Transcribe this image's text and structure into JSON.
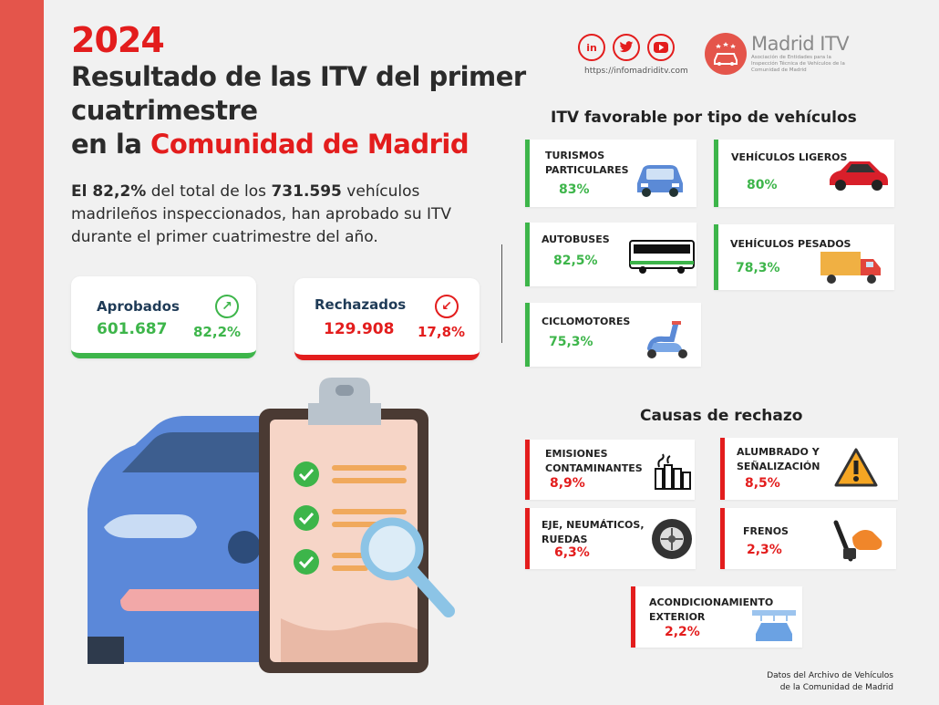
{
  "header": {
    "year": "2024",
    "title_line1": "Resultado de las ITV del primer",
    "title_line2": "cuatrimestre",
    "title_line3_prefix": "en la ",
    "title_line3_highlight": "Comunidad de Madrid"
  },
  "lead": {
    "pct": "El 82,2%",
    "part1": " del total de los ",
    "total": "731.595",
    "part2": "  vehículos madrileños inspeccionados, han aprobado su ITV durante el primer cuatrimestre del año."
  },
  "stats": {
    "approved": {
      "label": "Aprobados",
      "value": "601.687",
      "pct": "82,2%",
      "icon": "arrow-up-right-icon"
    },
    "rejected": {
      "label": "Rechazados",
      "value": "129.908",
      "pct": "17,8%",
      "icon": "arrow-down-left-icon"
    }
  },
  "social": {
    "linkedin": "in",
    "url": "https://infomadriditv.com"
  },
  "brand": {
    "name": "Madrid ITV",
    "subtitle": "Asociación de Entidades para la Inspección Técnica de Vehículos de la Comunidad de Madrid"
  },
  "favorable": {
    "title": "ITV favorable por tipo de vehículos",
    "items": [
      {
        "label_1": "TURISMOS",
        "label_2": "PARTICULARES",
        "pct": "83%",
        "icon": "car-icon"
      },
      {
        "label_1": "VEHÍCULOS LIGEROS",
        "label_2": "",
        "pct": "80%",
        "icon": "red-car-icon"
      },
      {
        "label_1": "AUTOBUSES",
        "label_2": "",
        "pct": "82,5%",
        "icon": "bus-icon"
      },
      {
        "label_1": "VEHÍCULOS PESADOS",
        "label_2": "",
        "pct": "78,3%",
        "icon": "truck-icon"
      },
      {
        "label_1": "CICLOMOTORES",
        "label_2": "",
        "pct": "75,3%",
        "icon": "scooter-icon"
      }
    ]
  },
  "rejection": {
    "title": "Causas de rechazo",
    "items": [
      {
        "label_1": "EMISIONES",
        "label_2": "CONTAMINANTES",
        "pct": "8,9%",
        "icon": "factory-icon"
      },
      {
        "label_1": "ALUMBRADO Y",
        "label_2": "SEÑALIZACIÓN",
        "pct": "8,5%",
        "icon": "warning-icon"
      },
      {
        "label_1": "EJE, NEUMÁTICOS,",
        "label_2": "RUEDAS",
        "pct": "6,3%",
        "icon": "tire-icon"
      },
      {
        "label_1": "FRENOS",
        "label_2": "",
        "pct": "2,3%",
        "icon": "brake-pedal-icon"
      },
      {
        "label_1": "ACONDICIONAMIENTO",
        "label_2": "EXTERIOR",
        "pct": "2,2%",
        "icon": "car-wash-icon"
      }
    ]
  },
  "footer": {
    "line1": "Datos del Archivo de Vehículos",
    "line2": "de la Comunidad de Madrid"
  },
  "colors": {
    "brand_red": "#e31d1d",
    "side_bar": "#e4554b",
    "green": "#3db54a",
    "navy": "#1f3b57"
  }
}
